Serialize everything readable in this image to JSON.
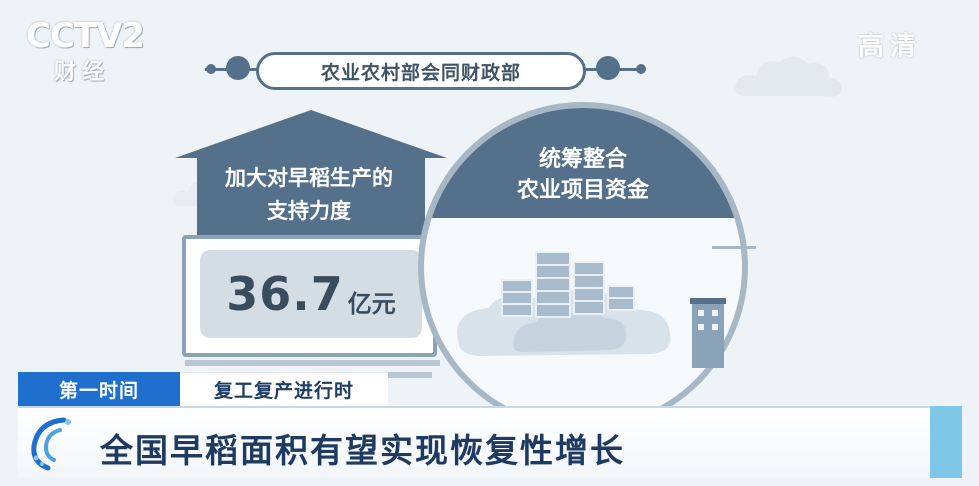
{
  "channel": {
    "logo_text": "CCTV2",
    "logo_sub": "财经",
    "quality_badge": "高清"
  },
  "banner": {
    "title": "农业农村部会同财政部"
  },
  "left_panel": {
    "heading_line1": "加大对早稻生产的",
    "heading_line2": "支持力度",
    "amount_value": "36.7",
    "amount_unit": "亿元"
  },
  "right_panel": {
    "title_line1": "统筹整合",
    "title_line2": "农业项目资金"
  },
  "lower_third": {
    "program_tag": "第一时间",
    "segment_tag": "复工复产进行时",
    "headline": "全国早稻面积有望实现恢复性增长"
  },
  "colors": {
    "navy": "#54708b",
    "frame": "#8aa3b8",
    "tag_blue": "#1f6fcf",
    "headline_text": "#1e3a62",
    "accent_cyan": "#7fc7e6"
  },
  "icons": [
    "cloud-icon",
    "data-stack-icon",
    "building-icon",
    "channel-swirl-icon"
  ]
}
